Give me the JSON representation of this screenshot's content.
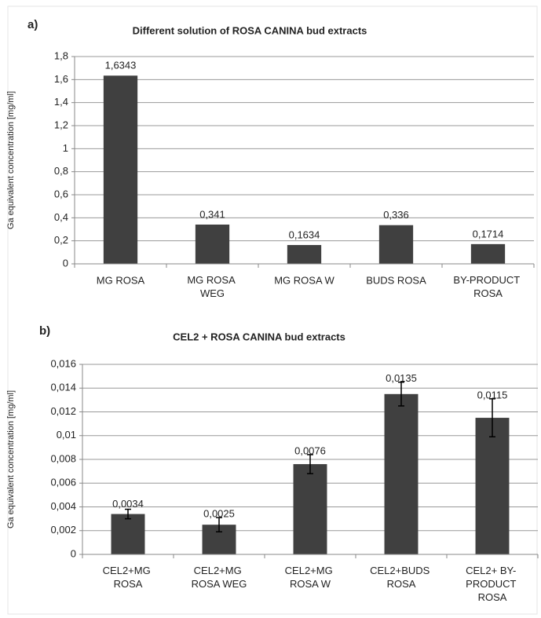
{
  "chart_data": [
    {
      "type": "bar",
      "panel_label": "a)",
      "title": "Different solution of ROSA CANINA bud extracts",
      "ylabel": "Ga equivalent concentration [mg/ml]",
      "categories": [
        "MG ROSA",
        "MG ROSA\nWEG",
        "MG ROSA W",
        "BUDS ROSA",
        "BY-PRODUCT\nROSA"
      ],
      "values": [
        1.6343,
        0.341,
        0.1634,
        0.336,
        0.1714
      ],
      "value_labels": [
        "1,6343",
        "0,341",
        "0,1634",
        "0,336",
        "0,1714"
      ],
      "color": "#404040",
      "grid": true,
      "ylim": [
        0,
        1.8
      ],
      "yticks": [
        0,
        {
          "value": 0.2,
          "label": "0,2"
        },
        {
          "value": 0.4,
          "label": "0,4"
        },
        {
          "value": 0.6,
          "label": "0,6"
        },
        {
          "value": 0.8,
          "label": "0,8"
        },
        1,
        {
          "value": 1.2,
          "label": "1,2"
        },
        {
          "value": 1.4,
          "label": "1,4"
        },
        {
          "value": 1.6,
          "label": "1,6"
        },
        {
          "value": 1.8,
          "label": "1,8"
        }
      ]
    },
    {
      "type": "bar",
      "panel_label": "b)",
      "title": "CEL2 + ROSA CANINA bud extracts",
      "ylabel": "Ga equivalent concentration [mg/ml]",
      "categories": [
        "CEL2+MG\nROSA",
        "CEL2+MG\nROSA WEG",
        "CEL2+MG\nROSA  W",
        "CEL2+BUDS\nROSA",
        "CEL2+ BY-\nPRODUCT\nROSA"
      ],
      "values": [
        0.0034,
        0.0025,
        0.0076,
        0.0135,
        0.0115
      ],
      "errors": [
        0.0004,
        0.0006,
        0.0008,
        0.001,
        0.0016
      ],
      "value_labels": [
        "0,0034",
        "0,0025",
        "0,0076",
        "0,0135",
        "0,0115"
      ],
      "color": "#404040",
      "grid": true,
      "ylim": [
        0,
        0.016
      ],
      "yticks": [
        0,
        {
          "value": 0.002,
          "label": "0,002"
        },
        {
          "value": 0.004,
          "label": "0,004"
        },
        {
          "value": 0.006,
          "label": "0,006"
        },
        {
          "value": 0.008,
          "label": "0,008"
        },
        {
          "value": 0.01,
          "label": "0,01"
        },
        {
          "value": 0.012,
          "label": "0,012"
        },
        {
          "value": 0.014,
          "label": "0,014"
        },
        {
          "value": 0.016,
          "label": "0,016"
        }
      ]
    }
  ]
}
